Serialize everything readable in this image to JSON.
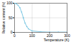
{
  "chart_data": {
    "type": "line",
    "xlabel": "Temperature (K)",
    "ylabel": "Relative content (%)",
    "x": [
      0,
      10,
      20,
      30,
      40,
      50,
      60,
      70,
      80,
      100,
      150,
      200,
      250,
      300
    ],
    "values": [
      100,
      98,
      93,
      85,
      70,
      50,
      32,
      20,
      12,
      5,
      2,
      1,
      1,
      1
    ],
    "color": "#7ec8e3",
    "marker": "circle",
    "xlim": [
      0,
      300
    ],
    "xticks": [
      0,
      100,
      200,
      300
    ],
    "ylim": [
      0,
      100
    ],
    "yticks": [
      0,
      50,
      100
    ],
    "grid": true
  }
}
